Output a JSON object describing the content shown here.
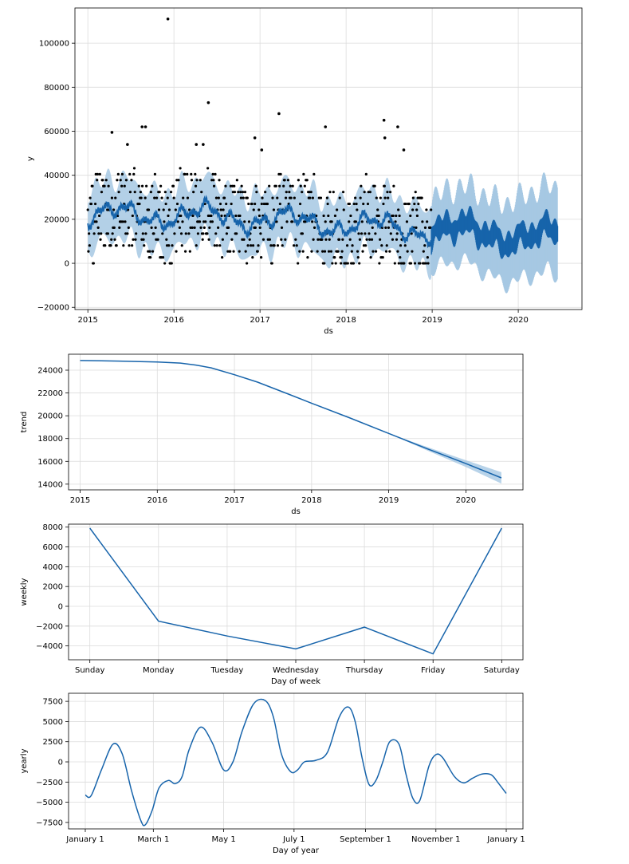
{
  "chart_data": [
    {
      "type": "scatter",
      "xlabel": "ds",
      "ylabel": "y",
      "xlim": [
        2014.85,
        2020.74
      ],
      "ylim": [
        -21000,
        116000
      ],
      "x_ticks": [
        2015,
        2016,
        2017,
        2018,
        2019,
        2020
      ],
      "x_tick_labels": [
        "2015",
        "2016",
        "2017",
        "2018",
        "2019",
        "2020"
      ],
      "y_ticks": [
        -20000,
        0,
        20000,
        40000,
        60000,
        80000,
        100000
      ],
      "y_tick_labels": [
        "−20000",
        "0",
        "20000",
        "40000",
        "60000",
        "80000",
        "100000"
      ],
      "grid": true,
      "colors": {
        "observed": "#000000",
        "forecast": "#1764ab",
        "interval": "#a6c8e3"
      },
      "history_range": [
        2015.0,
        2018.99
      ],
      "forecast_end": 2020.46,
      "outliers": [
        {
          "x": 2015.93,
          "y": 111000
        },
        {
          "x": 2016.4,
          "y": 73000
        },
        {
          "x": 2017.22,
          "y": 68000
        },
        {
          "x": 2018.44,
          "y": 65000
        },
        {
          "x": 2015.63,
          "y": 62000
        },
        {
          "x": 2015.67,
          "y": 62000
        },
        {
          "x": 2017.76,
          "y": 62000
        },
        {
          "x": 2018.6,
          "y": 62000
        },
        {
          "x": 2015.28,
          "y": 59500
        },
        {
          "x": 2016.94,
          "y": 57000
        },
        {
          "x": 2018.45,
          "y": 57000
        },
        {
          "x": 2015.46,
          "y": 54000
        },
        {
          "x": 2016.26,
          "y": 54000
        },
        {
          "x": 2016.34,
          "y": 54000
        },
        {
          "x": 2017.02,
          "y": 51500
        },
        {
          "x": 2018.67,
          "y": 51500
        }
      ]
    },
    {
      "type": "line",
      "xlabel": "ds",
      "ylabel": "trend",
      "xlim": [
        2014.85,
        2020.74
      ],
      "ylim": [
        13500,
        25400
      ],
      "x_ticks": [
        2015,
        2016,
        2017,
        2018,
        2019,
        2020
      ],
      "x_tick_labels": [
        "2015",
        "2016",
        "2017",
        "2018",
        "2019",
        "2020"
      ],
      "y_ticks": [
        14000,
        16000,
        18000,
        20000,
        22000,
        24000
      ],
      "y_tick_labels": [
        "14000",
        "16000",
        "18000",
        "20000",
        "22000",
        "24000"
      ],
      "grid": true,
      "x": [
        2015.0,
        2015.5,
        2016.0,
        2016.3,
        2016.5,
        2016.7,
        2017.0,
        2017.3,
        2017.7,
        2018.0,
        2018.5,
        2019.0,
        2019.5,
        2020.0,
        2020.46
      ],
      "values": [
        24850,
        24800,
        24720,
        24620,
        24450,
        24200,
        23600,
        22950,
        21900,
        21100,
        19800,
        18450,
        17100,
        15800,
        14550
      ],
      "upper": [
        24850,
        24800,
        24720,
        24620,
        24450,
        24200,
        23600,
        22950,
        21900,
        21100,
        19800,
        18450,
        17250,
        16100,
        15050
      ],
      "lower": [
        24850,
        24800,
        24720,
        24620,
        24450,
        24200,
        23600,
        22950,
        21900,
        21100,
        19800,
        18450,
        16950,
        15500,
        14050
      ]
    },
    {
      "type": "line",
      "xlabel": "Day of week",
      "ylabel": "weekly",
      "categories": [
        "Sunday",
        "Monday",
        "Tuesday",
        "Wednesday",
        "Thursday",
        "Friday",
        "Saturday"
      ],
      "values": [
        7900,
        -1500,
        -3000,
        -4300,
        -2100,
        -4800,
        7900
      ],
      "ylim": [
        -5400,
        8300
      ],
      "y_ticks": [
        -4000,
        -2000,
        0,
        2000,
        4000,
        6000,
        8000
      ],
      "y_tick_labels": [
        "−4000",
        "−2000",
        "0",
        "2000",
        "4000",
        "6000",
        "8000"
      ],
      "grid": true
    },
    {
      "type": "line",
      "xlabel": "Day of year",
      "ylabel": "yearly",
      "xlim": [
        -15,
        380
      ],
      "ylim": [
        -8300,
        8500
      ],
      "x_ticks": [
        0,
        59,
        120,
        181,
        243,
        304,
        365
      ],
      "x_tick_labels": [
        "January 1",
        "March 1",
        "May 1",
        "July 1",
        "September 1",
        "November 1",
        "January 1"
      ],
      "y_ticks": [
        -7500,
        -5000,
        -2500,
        0,
        2500,
        5000,
        7500
      ],
      "y_tick_labels": [
        "−7500",
        "−5000",
        "−2500",
        "0",
        "2500",
        "5000",
        "7500"
      ],
      "grid": true,
      "x": [
        0,
        5,
        14,
        24,
        32,
        40,
        48,
        52,
        58,
        64,
        72,
        78,
        84,
        90,
        100,
        110,
        120,
        128,
        136,
        146,
        156,
        163,
        170,
        178,
        184,
        190,
        200,
        210,
        220,
        228,
        234,
        240,
        246,
        252,
        258,
        264,
        272,
        278,
        284,
        290,
        298,
        304,
        310,
        320,
        328,
        336,
        344,
        352,
        358,
        365
      ],
      "values": [
        -4100,
        -4200,
        -1000,
        2200,
        1000,
        -3500,
        -7200,
        -7800,
        -6000,
        -3200,
        -2300,
        -2700,
        -1800,
        1500,
        4300,
        2400,
        -1000,
        0,
        3800,
        7200,
        7600,
        5600,
        1000,
        -1200,
        -1000,
        0,
        200,
        1200,
        5500,
        6800,
        5000,
        500,
        -2800,
        -2300,
        0,
        2500,
        2200,
        -1500,
        -4500,
        -4800,
        -500,
        900,
        500,
        -1800,
        -2600,
        -2000,
        -1500,
        -1600,
        -2600,
        -3900
      ]
    }
  ]
}
